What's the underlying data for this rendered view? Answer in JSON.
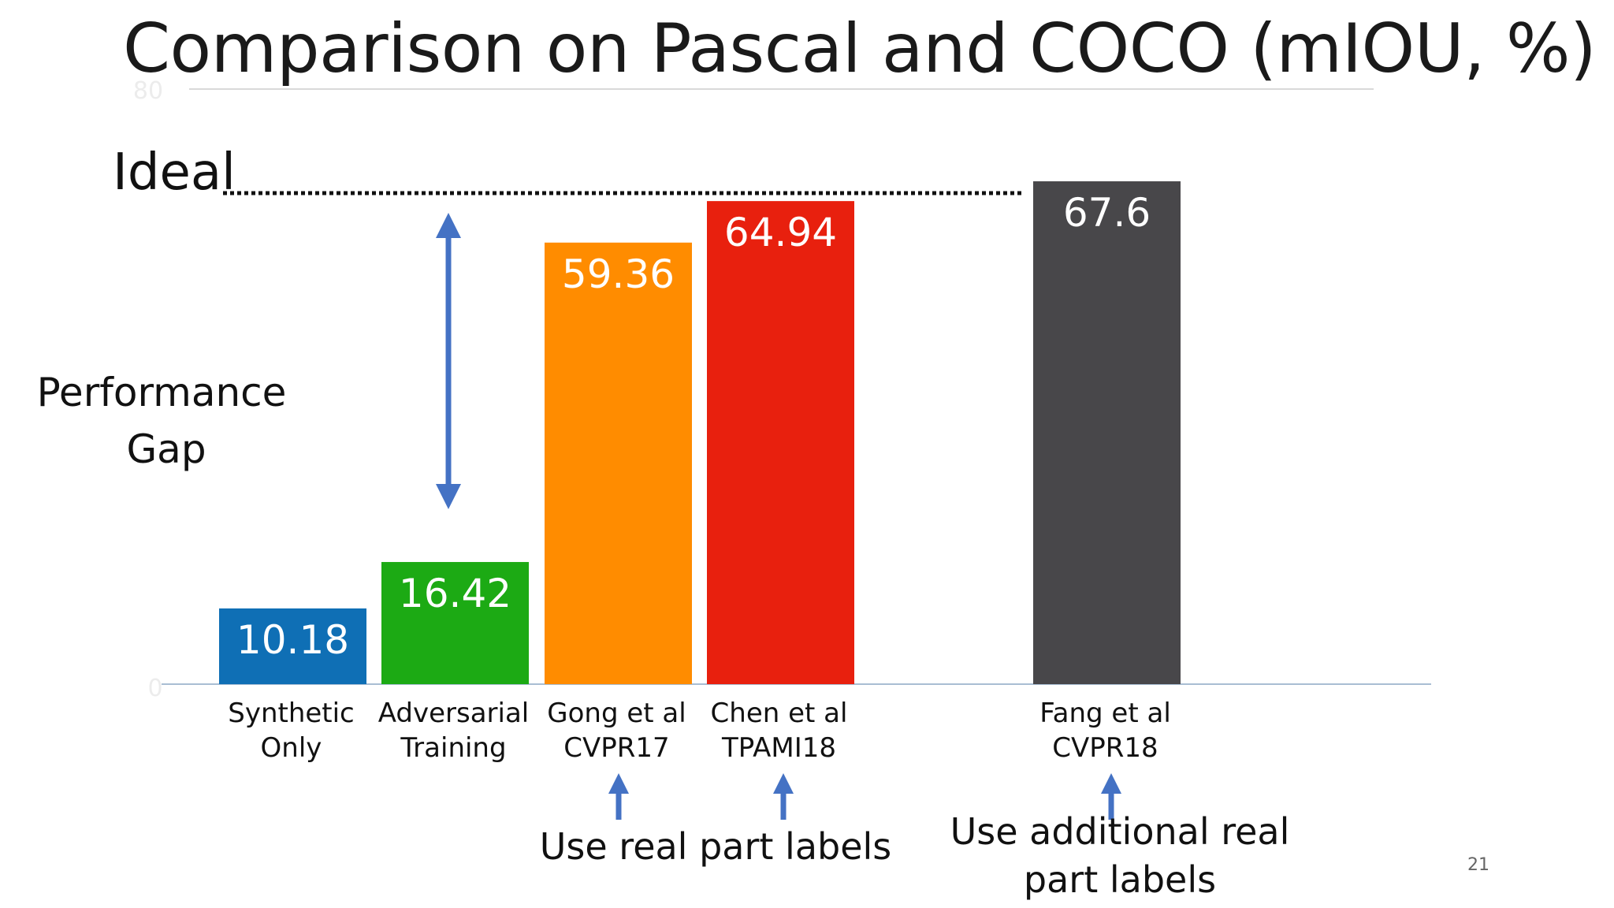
{
  "slide": {
    "title": "Comparison on Pascal and COCO (mIOU, %)",
    "page_number": "21"
  },
  "chart_data": {
    "type": "bar",
    "categories": [
      [
        "Synthetic",
        "Only"
      ],
      [
        "Adversarial",
        "Training"
      ],
      [
        "Gong et al",
        "CVPR17"
      ],
      [
        "Chen et al",
        "TPAMI18"
      ],
      [
        "Fang et al",
        "CVPR18"
      ]
    ],
    "values": [
      10.18,
      16.42,
      59.36,
      64.94,
      67.6
    ],
    "value_labels": [
      "10.18",
      "16.42",
      "59.36",
      "64.94",
      "67.6"
    ],
    "colors": [
      "#0f6fb5",
      "#1caa14",
      "#ff8c00",
      "#e8200e",
      "#48474a"
    ],
    "ylim": [
      0,
      80
    ],
    "y_ticks": [
      "0",
      "80"
    ],
    "ideal_value": 67.6,
    "grid": false,
    "annotations": {
      "ideal_label": "Ideal",
      "gap_label_line1": "Performance",
      "gap_label_line2": "Gap",
      "real_part_note": "Use real part labels",
      "additional_note_line1": "Use additional real",
      "additional_note_line2": "part labels"
    },
    "accent_color": "#4472c4"
  }
}
